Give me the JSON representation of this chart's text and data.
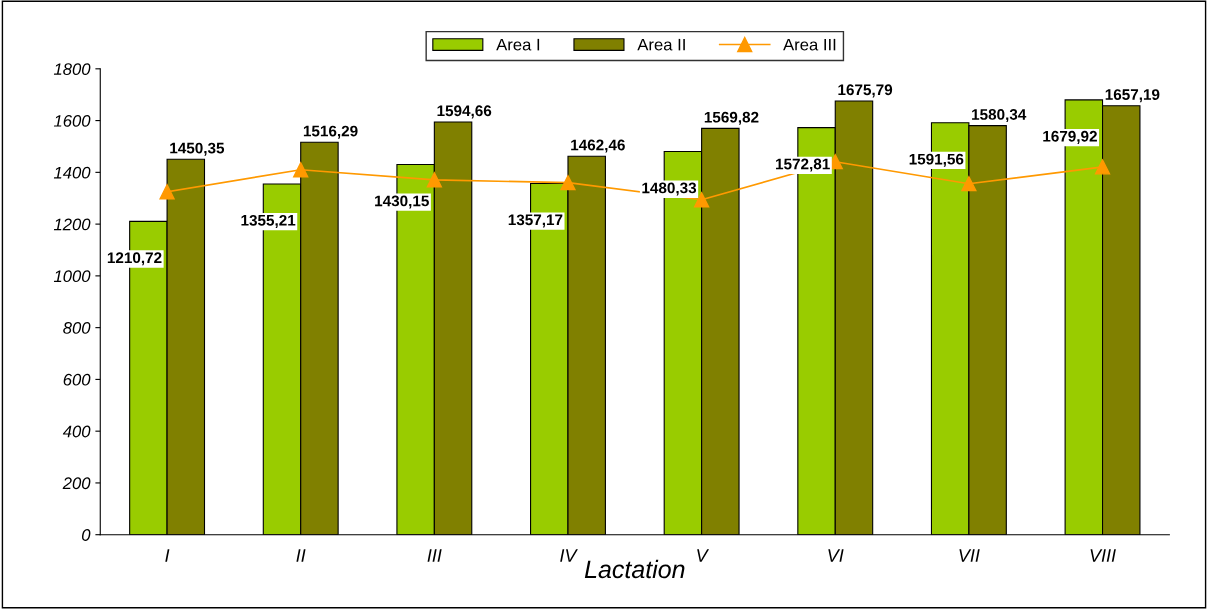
{
  "chart_data": {
    "type": "bar",
    "xlabel": "Lactation",
    "categories": [
      "I",
      "II",
      "III",
      "IV",
      "V",
      "VI",
      "VII",
      "VIII"
    ],
    "series": [
      {
        "name": "Area I",
        "color": "#99cc00",
        "values": [
          1210.72,
          1355.21,
          1430.15,
          1357.17,
          1480.33,
          1572.81,
          1591.56,
          1679.92
        ],
        "value_labels": [
          "1210,72",
          "1355,21",
          "1430,15",
          "1357,17",
          "1480,33",
          "1572,81",
          "1591,56",
          "1679,92"
        ]
      },
      {
        "name": "Area II",
        "color": "#808000",
        "values": [
          1450.35,
          1516.29,
          1594.66,
          1462.46,
          1569.82,
          1675.79,
          1580.34,
          1657.19
        ],
        "value_labels": [
          "1450,35",
          "1516,29",
          "1594,66",
          "1462,46",
          "1569,82",
          "1675,79",
          "1580,34",
          "1657,19"
        ]
      },
      {
        "name": "Area III",
        "type": "line",
        "color": "#ff9900",
        "marker": "triangle",
        "values": [
          1325,
          1410,
          1371,
          1360,
          1294,
          1441,
          1356,
          1421
        ]
      }
    ],
    "ylim": [
      0,
      1800
    ],
    "yticks": [
      0,
      200,
      400,
      600,
      800,
      1000,
      1200,
      1400,
      1600,
      1800
    ],
    "grid": false,
    "legend": "top"
  }
}
